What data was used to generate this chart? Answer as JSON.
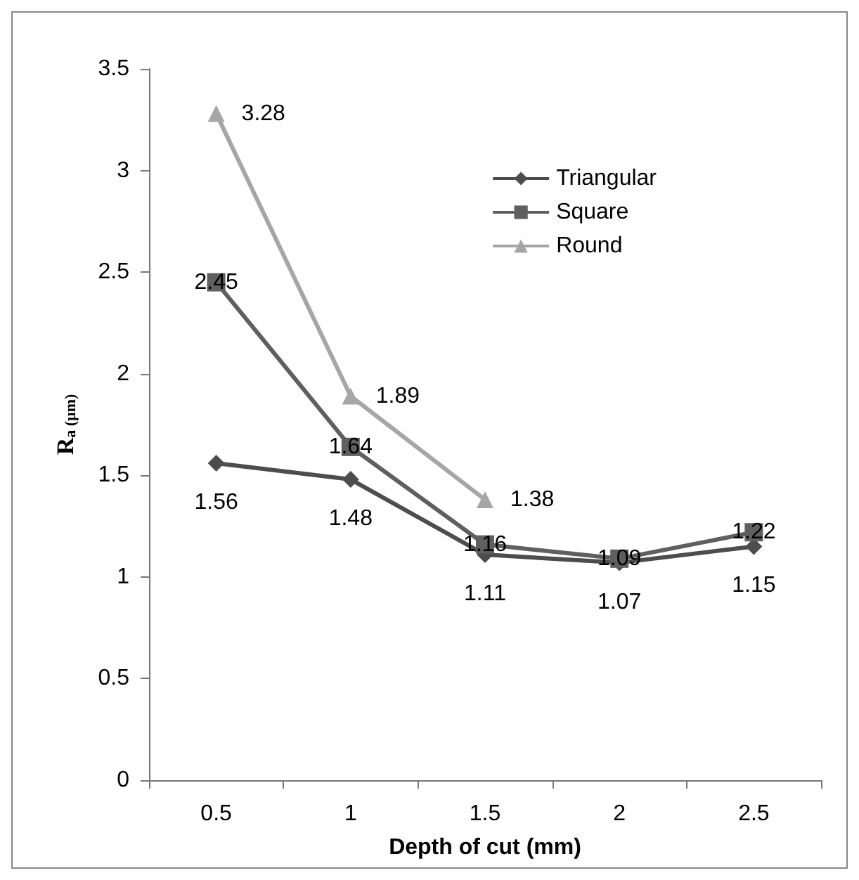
{
  "chart_data": {
    "type": "line",
    "xlabel": "Depth of cut (mm)",
    "ylabel": "R$_{a (µm)}$",
    "categories": [
      "0.5",
      "1",
      "1.5",
      "2",
      "2.5"
    ],
    "series": [
      {
        "name": "Triangular",
        "color": "#4d4d4d",
        "marker": "diamond",
        "values": [
          1.56,
          1.48,
          1.11,
          1.07,
          1.15
        ]
      },
      {
        "name": "Square",
        "color": "#5f5f5f",
        "marker": "square",
        "values": [
          2.45,
          1.64,
          1.16,
          1.09,
          1.22
        ]
      },
      {
        "name": "Round",
        "color": "#a6a6a6",
        "marker": "triangle",
        "values": [
          3.28,
          1.89,
          1.38,
          null,
          null
        ]
      }
    ],
    "ylim": [
      0,
      3.5
    ],
    "yticks": [
      0,
      0.5,
      1,
      1.5,
      2,
      2.5,
      3,
      3.5
    ],
    "grid": false,
    "legend": "top right",
    "data_labels": true
  }
}
